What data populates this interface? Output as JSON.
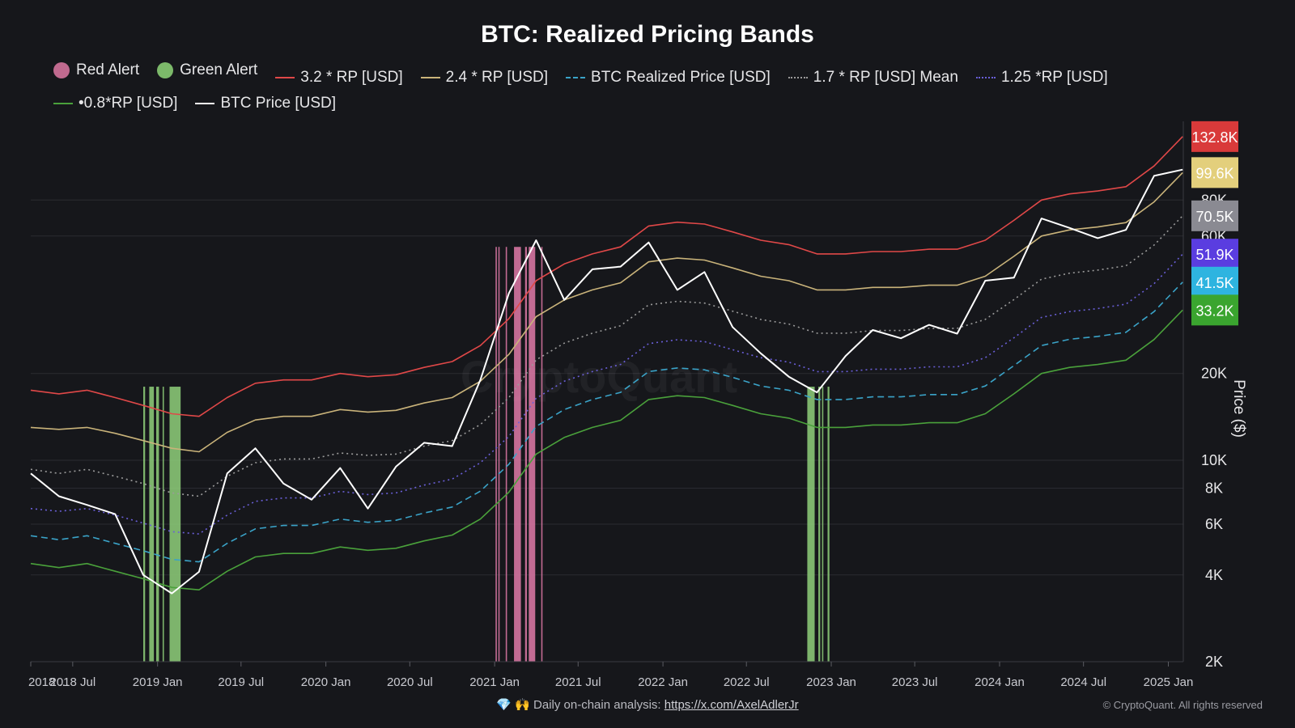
{
  "title": "BTC: Realized Pricing Bands",
  "legend": [
    {
      "label": "Red Alert",
      "kind": "dot",
      "color": "#c06a8f"
    },
    {
      "label": "Green Alert",
      "kind": "dot",
      "color": "#7cb96a"
    },
    {
      "label": "3.2 * RP [USD]",
      "kind": "solid",
      "color": "#e04848"
    },
    {
      "label": "2.4 * RP [USD]",
      "kind": "solid",
      "color": "#c9b37a"
    },
    {
      "label": "BTC Realized Price [USD]",
      "kind": "dashed",
      "color": "#3aa3c8"
    },
    {
      "label": "1.7 * RP [USD] Mean",
      "kind": "dotted",
      "color": "#9b9b9b"
    },
    {
      "label": "1.25 *RP [USD]",
      "kind": "dotted",
      "color": "#6a5fd8"
    },
    {
      "label": "•0.8*RP [USD]",
      "kind": "solid",
      "color": "#4aa13b"
    },
    {
      "label": "BTC Price [USD]",
      "kind": "solid",
      "color": "#ffffff"
    }
  ],
  "footer": {
    "prefix": "💎 🙌 Daily on-chain analysis: ",
    "link_text": "https://x.com/AxelAdlerJr",
    "copyright": "© CryptoQuant. All rights reserved"
  },
  "watermark": "CryptoQuant",
  "chart_data": {
    "type": "line",
    "title": "BTC: Realized Pricing Bands",
    "ylabel": "Price ($)",
    "yscale": "log",
    "ylim": [
      2000,
      150000
    ],
    "xlim": [
      "2018-04-01",
      "2025-02-20"
    ],
    "x_ticks": [
      {
        "date": "2018-04-01",
        "label": "2018 ..."
      },
      {
        "date": "2018-07-01",
        "label": "2018 Jul"
      },
      {
        "date": "2019-01-01",
        "label": "2019 Jan"
      },
      {
        "date": "2019-07-01",
        "label": "2019 Jul"
      },
      {
        "date": "2020-01-01",
        "label": "2020 Jan"
      },
      {
        "date": "2020-07-01",
        "label": "2020 Jul"
      },
      {
        "date": "2021-01-01",
        "label": "2021 Jan"
      },
      {
        "date": "2021-07-01",
        "label": "2021 Jul"
      },
      {
        "date": "2022-01-01",
        "label": "2022 Jan"
      },
      {
        "date": "2022-07-01",
        "label": "2022 Jul"
      },
      {
        "date": "2023-01-01",
        "label": "2023 Jan"
      },
      {
        "date": "2023-07-01",
        "label": "2023 Jul"
      },
      {
        "date": "2024-01-01",
        "label": "2024 Jan"
      },
      {
        "date": "2024-07-01",
        "label": "2024 Jul"
      },
      {
        "date": "2025-01-01",
        "label": "2025 Jan"
      }
    ],
    "y_ticks": [
      {
        "value": 2000,
        "label": "2K"
      },
      {
        "value": 4000,
        "label": "4K"
      },
      {
        "value": 6000,
        "label": "6K"
      },
      {
        "value": 8000,
        "label": "8K"
      },
      {
        "value": 10000,
        "label": "10K"
      },
      {
        "value": 20000,
        "label": "20K"
      },
      {
        "value": 60000,
        "label": "60K"
      },
      {
        "value": 80000,
        "label": "80K"
      }
    ],
    "grid": true,
    "legend_position": "top",
    "dates": [
      "2018-04-01",
      "2018-06-01",
      "2018-08-01",
      "2018-10-01",
      "2018-12-01",
      "2019-02-01",
      "2019-04-01",
      "2019-06-01",
      "2019-08-01",
      "2019-10-01",
      "2019-12-01",
      "2020-02-01",
      "2020-04-01",
      "2020-06-01",
      "2020-08-01",
      "2020-10-01",
      "2020-12-01",
      "2021-02-01",
      "2021-04-01",
      "2021-06-01",
      "2021-08-01",
      "2021-10-01",
      "2021-12-01",
      "2022-02-01",
      "2022-04-01",
      "2022-06-01",
      "2022-08-01",
      "2022-10-01",
      "2022-12-01",
      "2023-02-01",
      "2023-04-01",
      "2023-06-01",
      "2023-08-01",
      "2023-10-01",
      "2023-12-01",
      "2024-02-01",
      "2024-04-01",
      "2024-06-01",
      "2024-08-01",
      "2024-10-01",
      "2024-12-01",
      "2025-02-01"
    ],
    "series": [
      {
        "name": "3.2 * RP [USD]",
        "color": "#e04848",
        "style": "solid",
        "values": [
          17500,
          17000,
          17500,
          16500,
          15500,
          14500,
          14200,
          16500,
          18500,
          19000,
          19000,
          20000,
          19500,
          19800,
          21000,
          22000,
          25000,
          31000,
          42000,
          48000,
          52000,
          55000,
          65000,
          67000,
          66000,
          62000,
          58000,
          56000,
          52000,
          52000,
          53000,
          53000,
          54000,
          54000,
          58000,
          68000,
          80000,
          84000,
          86000,
          89000,
          105000,
          132800
        ]
      },
      {
        "name": "2.4 * RP [USD]",
        "color": "#c9b37a",
        "style": "solid",
        "values": [
          13000,
          12800,
          13000,
          12400,
          11700,
          11000,
          10700,
          12500,
          13800,
          14200,
          14200,
          15000,
          14700,
          14900,
          15800,
          16500,
          18800,
          23300,
          31500,
          36000,
          39000,
          41300,
          48800,
          50300,
          49500,
          46500,
          43500,
          42000,
          39000,
          39000,
          39800,
          39800,
          40500,
          40500,
          43500,
          51000,
          60000,
          63000,
          64500,
          66800,
          78800,
          99600
        ]
      },
      {
        "name": "1.7 * RP [USD] Mean",
        "color": "#9b9b9b",
        "style": "dotted",
        "values": [
          9300,
          9000,
          9300,
          8800,
          8300,
          7700,
          7500,
          8800,
          9800,
          10100,
          10100,
          10600,
          10400,
          10500,
          11200,
          11700,
          13300,
          16500,
          22300,
          25500,
          27600,
          29300,
          34600,
          35600,
          35100,
          32900,
          30800,
          29700,
          27600,
          27600,
          28200,
          28200,
          28700,
          28700,
          30800,
          36100,
          42500,
          44600,
          45700,
          47300,
          55800,
          70500
        ]
      },
      {
        "name": "1.25 *RP [USD]",
        "color": "#6a5fd8",
        "style": "dotted",
        "values": [
          6800,
          6650,
          6800,
          6450,
          6050,
          5650,
          5550,
          6450,
          7200,
          7400,
          7400,
          7800,
          7600,
          7700,
          8200,
          8600,
          9800,
          12100,
          16400,
          18800,
          20300,
          21500,
          25400,
          26200,
          25800,
          24200,
          22700,
          21900,
          20300,
          20300,
          20700,
          20700,
          21100,
          21100,
          22700,
          26600,
          31300,
          32800,
          33600,
          34800,
          41000,
          51900
        ]
      },
      {
        "name": "BTC Realized Price [USD]",
        "color": "#3aa3c8",
        "style": "dashed",
        "values": [
          5470,
          5300,
          5470,
          5150,
          4850,
          4530,
          4440,
          5150,
          5780,
          5940,
          5940,
          6250,
          6090,
          6190,
          6560,
          6880,
          7810,
          9690,
          13100,
          15000,
          16250,
          17200,
          20300,
          20900,
          20600,
          19400,
          18100,
          17500,
          16250,
          16250,
          16600,
          16600,
          16900,
          16900,
          18100,
          21300,
          25000,
          26300,
          26900,
          27800,
          32800,
          41500
        ]
      },
      {
        "name": "•0.8*RP [USD]",
        "color": "#4aa13b",
        "style": "solid",
        "values": [
          4380,
          4240,
          4380,
          4120,
          3880,
          3620,
          3550,
          4120,
          4620,
          4750,
          4750,
          5000,
          4870,
          4950,
          5250,
          5500,
          6250,
          7750,
          10500,
          12000,
          13000,
          13760,
          16250,
          16750,
          16500,
          15500,
          14500,
          14000,
          13000,
          13000,
          13250,
          13250,
          13500,
          13500,
          14500,
          17000,
          20000,
          21000,
          21500,
          22250,
          26250,
          33200
        ]
      },
      {
        "name": "BTC Price [USD]",
        "color": "#ffffff",
        "style": "solid",
        "values": [
          9000,
          7500,
          7000,
          6500,
          4000,
          3450,
          4100,
          9000,
          11000,
          8300,
          7300,
          9400,
          6800,
          9500,
          11500,
          11200,
          19000,
          38000,
          58000,
          36000,
          46000,
          47000,
          57000,
          39000,
          45000,
          29000,
          23500,
          19500,
          17200,
          23000,
          28300,
          26500,
          29500,
          27500,
          42000,
          43000,
          69000,
          64000,
          59000,
          63000,
          97000,
          102000
        ]
      }
    ],
    "alert_bands": {
      "red": [
        [
          "2021-01-03",
          "2021-01-05"
        ],
        [
          "2021-01-09",
          "2021-01-11"
        ],
        [
          "2021-01-25",
          "2021-01-27"
        ],
        [
          "2021-02-12",
          "2021-02-27"
        ],
        [
          "2021-03-08",
          "2021-03-12"
        ],
        [
          "2021-03-16",
          "2021-03-30"
        ],
        [
          "2021-04-12",
          "2021-04-14"
        ]
      ],
      "green": [
        [
          "2018-12-01",
          "2018-12-05"
        ],
        [
          "2018-12-14",
          "2018-12-24"
        ],
        [
          "2018-12-29",
          "2019-01-04"
        ],
        [
          "2019-01-12",
          "2019-01-14"
        ],
        [
          "2019-01-27",
          "2019-02-20"
        ],
        [
          "2022-11-10",
          "2022-11-26"
        ],
        [
          "2022-12-04",
          "2022-12-08"
        ],
        [
          "2022-12-12",
          "2022-12-14"
        ],
        [
          "2022-12-24",
          "2022-12-28"
        ]
      ]
    },
    "last_value_labels": [
      {
        "label": "132.8K",
        "color": "#d93a3a",
        "text_color": "#ffffff"
      },
      {
        "label": "99.6K",
        "color": "#e3cf7c",
        "text_color": "#ffffff"
      },
      {
        "label": "70.5K",
        "color": "#8a8a92",
        "text_color": "#ffffff"
      },
      {
        "label": "51.9K",
        "color": "#5a3de0",
        "text_color": "#ffffff"
      },
      {
        "label": "41.5K",
        "color": "#2eb4e0",
        "text_color": "#ffffff"
      },
      {
        "label": "33.2K",
        "color": "#3aa52f",
        "text_color": "#ffffff"
      }
    ]
  }
}
